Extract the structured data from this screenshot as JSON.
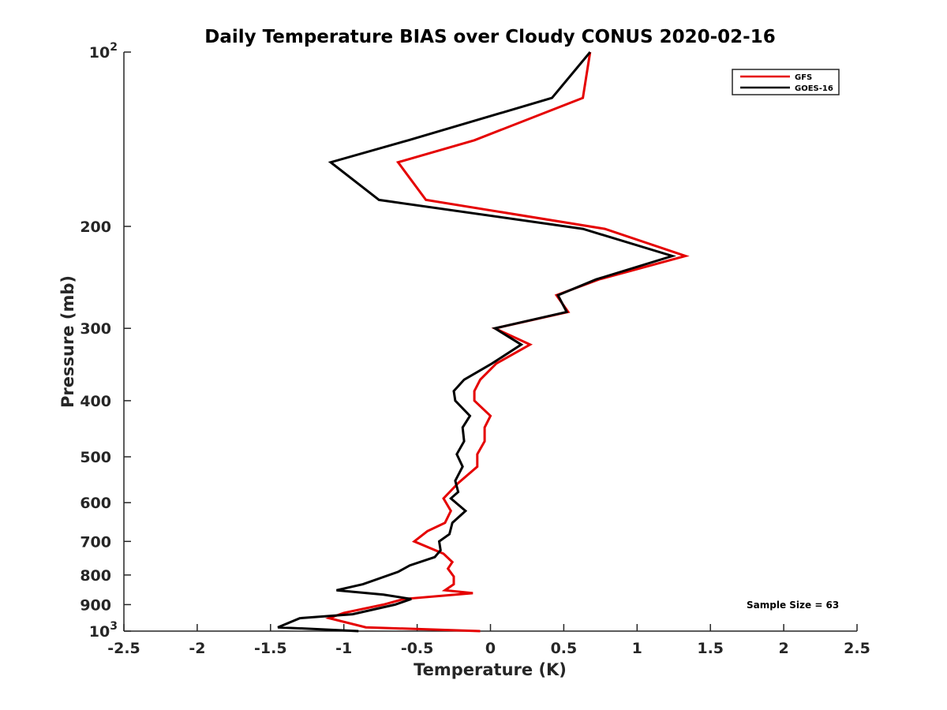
{
  "chart_data": {
    "type": "line",
    "title": "Daily Temperature BIAS over Cloudy CONUS 2020-02-16",
    "xlabel": "Temperature (K)",
    "ylabel": "Pressure (mb)",
    "xlim": [
      -2.5,
      2.5
    ],
    "ylim": [
      100,
      1000
    ],
    "y_scale": "log",
    "y_reversed": true,
    "x_ticks": [
      -2.5,
      -2,
      -1.5,
      -1,
      -0.5,
      0,
      0.5,
      1,
      1.5,
      2,
      2.5
    ],
    "x_tick_labels": [
      "-2.5",
      "-2",
      "-1.5",
      "-1",
      "-0.5",
      "0",
      "0.5",
      "1",
      "1.5",
      "2",
      "2.5"
    ],
    "y_ticks": [
      {
        "value": 100,
        "base": "10",
        "exp": "2"
      },
      {
        "value": 200,
        "label": "200"
      },
      {
        "value": 300,
        "label": "300"
      },
      {
        "value": 400,
        "label": "400"
      },
      {
        "value": 500,
        "label": "500"
      },
      {
        "value": 600,
        "label": "600"
      },
      {
        "value": 700,
        "label": "700"
      },
      {
        "value": 800,
        "label": "800"
      },
      {
        "value": 900,
        "label": "900"
      },
      {
        "value": 1000,
        "base": "10",
        "exp": "3"
      }
    ],
    "grid": false,
    "legend_position": "top-right",
    "annotation": "Sample Size = 63",
    "series": [
      {
        "name": "GFS",
        "color": "#e50000",
        "points": [
          [
            0.68,
            100
          ],
          [
            0.63,
            120
          ],
          [
            -0.11,
            142
          ],
          [
            -0.63,
            155
          ],
          [
            -0.44,
            180
          ],
          [
            0.78,
            202
          ],
          [
            1.33,
            225
          ],
          [
            0.74,
            247
          ],
          [
            0.45,
            263
          ],
          [
            0.53,
            281
          ],
          [
            0.03,
            300
          ],
          [
            0.27,
            320
          ],
          [
            0.04,
            345
          ],
          [
            -0.07,
            368
          ],
          [
            -0.11,
            385
          ],
          [
            -0.11,
            400
          ],
          [
            0.0,
            425
          ],
          [
            -0.04,
            445
          ],
          [
            -0.04,
            470
          ],
          [
            -0.09,
            495
          ],
          [
            -0.09,
            520
          ],
          [
            -0.22,
            555
          ],
          [
            -0.32,
            590
          ],
          [
            -0.27,
            620
          ],
          [
            -0.31,
            650
          ],
          [
            -0.43,
            672
          ],
          [
            -0.52,
            700
          ],
          [
            -0.32,
            735
          ],
          [
            -0.26,
            760
          ],
          [
            -0.29,
            780
          ],
          [
            -0.25,
            805
          ],
          [
            -0.25,
            830
          ],
          [
            -0.31,
            850
          ],
          [
            -0.12,
            860
          ],
          [
            -0.59,
            880
          ],
          [
            -0.73,
            900
          ],
          [
            -1.0,
            930
          ],
          [
            -1.1,
            950
          ],
          [
            -0.85,
            985
          ],
          [
            -0.07,
            1000
          ]
        ]
      },
      {
        "name": "GOES-16",
        "color": "#000000",
        "points": [
          [
            0.68,
            100
          ],
          [
            0.42,
            120
          ],
          [
            -0.56,
            142
          ],
          [
            -1.09,
            155
          ],
          [
            -0.76,
            180
          ],
          [
            0.63,
            202
          ],
          [
            1.24,
            225
          ],
          [
            0.72,
            247
          ],
          [
            0.46,
            263
          ],
          [
            0.52,
            281
          ],
          [
            0.03,
            300
          ],
          [
            0.21,
            320
          ],
          [
            0.01,
            345
          ],
          [
            -0.18,
            368
          ],
          [
            -0.25,
            385
          ],
          [
            -0.24,
            400
          ],
          [
            -0.14,
            425
          ],
          [
            -0.19,
            445
          ],
          [
            -0.18,
            470
          ],
          [
            -0.23,
            495
          ],
          [
            -0.19,
            520
          ],
          [
            -0.24,
            550
          ],
          [
            -0.22,
            575
          ],
          [
            -0.27,
            590
          ],
          [
            -0.17,
            620
          ],
          [
            -0.26,
            650
          ],
          [
            -0.28,
            680
          ],
          [
            -0.35,
            700
          ],
          [
            -0.34,
            725
          ],
          [
            -0.38,
            745
          ],
          [
            -0.55,
            770
          ],
          [
            -0.63,
            790
          ],
          [
            -0.87,
            830
          ],
          [
            -1.05,
            850
          ],
          [
            -0.73,
            865
          ],
          [
            -0.54,
            880
          ],
          [
            -0.65,
            900
          ],
          [
            -0.94,
            935
          ],
          [
            -1.3,
            950
          ],
          [
            -1.45,
            985
          ],
          [
            -0.9,
            1000
          ]
        ]
      }
    ]
  }
}
